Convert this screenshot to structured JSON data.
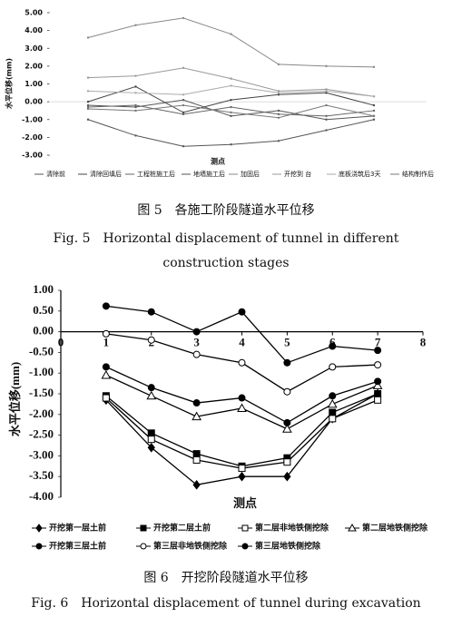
{
  "chart_data": [
    {
      "type": "line",
      "ylabel": "水平位移(mm)",
      "xlabel": "测点",
      "caption": "图 5　各施工阶段隧道水平位移",
      "caption_en": [
        "Fig. 5　Horizontal displacement of tunnel in different",
        "construction stages"
      ],
      "categories": [
        null,
        null,
        null,
        null,
        null,
        null,
        null
      ],
      "ylim": [
        -3,
        5
      ],
      "yticks": [
        {
          "value": 5,
          "label": "5.00"
        },
        {
          "value": 4,
          "label": "4.00"
        },
        {
          "value": 3,
          "label": "3.00"
        },
        {
          "value": 2,
          "label": "2.00"
        },
        {
          "value": 1,
          "label": "1.00"
        },
        {
          "value": 0,
          "label": "0.00"
        },
        {
          "value": -1,
          "label": "-1.00"
        },
        {
          "value": -2,
          "label": "-2.00"
        },
        {
          "value": -3,
          "label": "-3.00"
        }
      ],
      "series": [
        {
          "name": "清除前",
          "color": "#555555",
          "values": [
            -0.2,
            -0.3,
            0.1,
            -0.8,
            -0.5,
            -1.0,
            -0.8
          ]
        },
        {
          "name": "清除回填后",
          "color": "#444444",
          "values": [
            0.0,
            0.85,
            -0.6,
            0.1,
            0.4,
            0.5,
            -0.2
          ]
        },
        {
          "name": "工程桩施工后",
          "color": "#666666",
          "values": [
            -0.3,
            -0.2,
            -0.7,
            -0.3,
            -0.7,
            -0.8,
            -0.5
          ]
        },
        {
          "name": "地墙施工后",
          "color": "#555555",
          "values": [
            -1.0,
            -1.9,
            -2.5,
            -2.4,
            -2.2,
            -1.6,
            -1.0
          ]
        },
        {
          "name": "加固后",
          "color": "#888888",
          "values": [
            3.6,
            4.3,
            4.7,
            3.8,
            2.1,
            2.0,
            1.95
          ]
        },
        {
          "name": "开挖到 台",
          "color": "#999999",
          "values": [
            1.35,
            1.45,
            1.9,
            1.3,
            0.6,
            0.7,
            0.3
          ]
        },
        {
          "name": "底板浇筑后3天",
          "color": "#aaaaaa",
          "values": [
            0.6,
            0.5,
            0.4,
            0.9,
            0.5,
            0.6,
            0.3
          ]
        },
        {
          "name": "结构制作后",
          "color": "#777777",
          "values": [
            -0.4,
            -0.5,
            -0.2,
            -0.6,
            -0.9,
            -0.2,
            -0.8
          ]
        }
      ]
    },
    {
      "type": "line",
      "ylabel": "水平位移(mm)",
      "xlabel": "测点",
      "caption": "图 6　开挖阶段隧道水平位移",
      "caption_en": [
        "Fig. 6　Horizontal displacement of tunnel during excavation"
      ],
      "x": [
        1,
        2,
        3,
        4,
        5,
        6,
        7
      ],
      "xlim": [
        0,
        8
      ],
      "xticks": [
        0,
        1,
        2,
        3,
        4,
        5,
        6,
        7,
        8
      ],
      "ylim": [
        -4,
        1
      ],
      "yticks": [
        {
          "value": 1,
          "label": "1.00"
        },
        {
          "value": 0.5,
          "label": "0.50"
        },
        {
          "value": 0,
          "label": "0.00"
        },
        {
          "value": -0.5,
          "label": "-0.50"
        },
        {
          "value": -1,
          "label": "-1.00"
        },
        {
          "value": -1.5,
          "label": "-1.50"
        },
        {
          "value": -2,
          "label": "-2.00"
        },
        {
          "value": -2.5,
          "label": "-2.50"
        },
        {
          "value": -3,
          "label": "-3.00"
        },
        {
          "value": -3.5,
          "label": "-3.50"
        },
        {
          "value": -4,
          "label": "-4.00"
        }
      ],
      "series": [
        {
          "name": "开挖第一层土前",
          "color": "#000000",
          "marker": "diamond",
          "values": [
            -1.65,
            -2.8,
            -3.7,
            -3.5,
            -3.5,
            -2.1,
            -1.5
          ]
        },
        {
          "name": "开挖第二层土前",
          "color": "#000000",
          "marker": "square",
          "values": [
            -1.55,
            -2.45,
            -2.95,
            -3.25,
            -3.05,
            -1.95,
            -1.5
          ]
        },
        {
          "name": "第二层非地铁侧挖除",
          "color": "#000000",
          "marker": "square-open",
          "values": [
            -1.6,
            -2.6,
            -3.1,
            -3.3,
            -3.15,
            -2.1,
            -1.65
          ]
        },
        {
          "name": "第二层地铁侧挖除",
          "color": "#000000",
          "marker": "triangle-open",
          "values": [
            -1.05,
            -1.55,
            -2.05,
            -1.85,
            -2.35,
            -1.75,
            -1.3
          ]
        },
        {
          "name": "开挖第三层土前",
          "color": "#000000",
          "marker": "circle",
          "values": [
            -0.85,
            -1.35,
            -1.72,
            -1.6,
            -2.2,
            -1.55,
            -1.2
          ]
        },
        {
          "name": "第三层非地铁侧挖除",
          "color": "#000000",
          "marker": "circle-open",
          "values": [
            -0.05,
            -0.2,
            -0.55,
            -0.75,
            -1.45,
            -0.85,
            -0.8
          ]
        },
        {
          "name": "第三层地铁侧挖除",
          "color": "#000000",
          "marker": "circle",
          "values": [
            0.62,
            0.48,
            0.0,
            0.48,
            -0.75,
            -0.35,
            -0.45
          ]
        }
      ]
    }
  ]
}
